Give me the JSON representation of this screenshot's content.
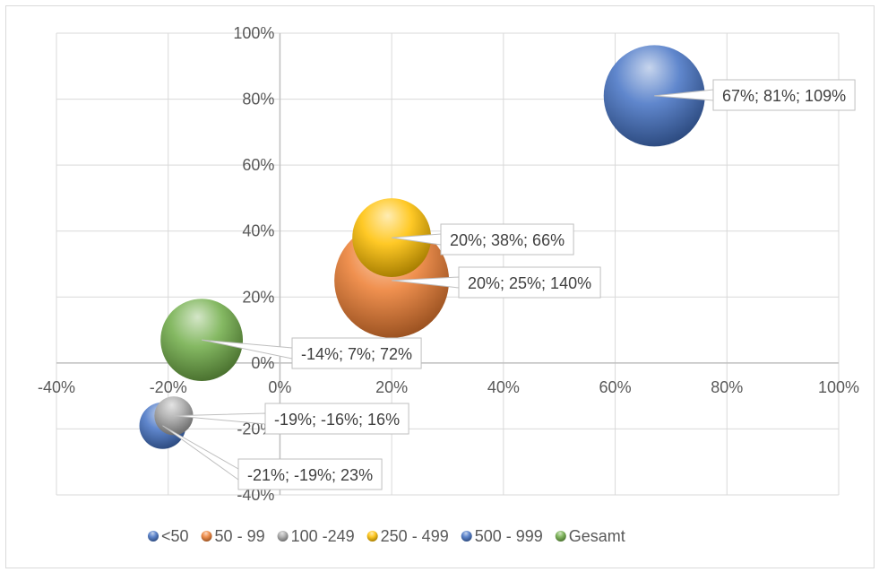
{
  "chart_data": {
    "type": "bubble",
    "x_ticks": [
      "-40%",
      "-20%",
      "0%",
      "20%",
      "40%",
      "60%",
      "80%",
      "100%"
    ],
    "y_ticks": [
      "-40%",
      "-20%",
      "0%",
      "20%",
      "40%",
      "60%",
      "80%",
      "100%"
    ],
    "xlim": [
      -40,
      100
    ],
    "ylim": [
      -40,
      100
    ],
    "grid": true,
    "legend_position": "bottom",
    "series": [
      {
        "name": "<50",
        "x": -21,
        "y": -19,
        "size": 23,
        "label": "-21%; -19%; 23%",
        "color": "#4472c4"
      },
      {
        "name": "50 - 99",
        "x": 20,
        "y": 25,
        "size": 140,
        "label": "20%; 25%; 140%",
        "color": "#ed7d31"
      },
      {
        "name": "100 -249",
        "x": -19,
        "y": -16,
        "size": 16,
        "label": "-19%; -16%; 16%",
        "color": "#a5a5a5"
      },
      {
        "name": "250 - 499",
        "x": 20,
        "y": 38,
        "size": 66,
        "label": "20%; 38%; 66%",
        "color": "#ffc000"
      },
      {
        "name": "500 - 999",
        "x": 67,
        "y": 81,
        "size": 109,
        "label": "67%; 81%; 109%",
        "color": "#4472c4"
      },
      {
        "name": "Gesamt",
        "x": -14,
        "y": 7,
        "size": 72,
        "label": "-14%; 7%; 72%",
        "color": "#70ad47"
      }
    ]
  }
}
